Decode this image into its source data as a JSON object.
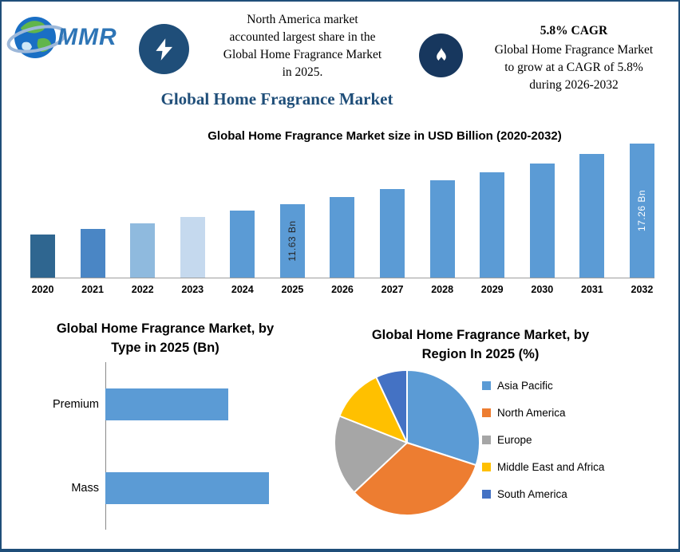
{
  "page": {
    "background": "#FFFFFF",
    "border_color": "#1F4E79"
  },
  "logo": {
    "text": "MMR"
  },
  "header": {
    "highlight_share": {
      "lines": [
        "North America market",
        "accounted largest share in the",
        "Global Home Fragrance Market",
        "in 2025."
      ]
    },
    "highlight_cagr": {
      "title": "5.8% CAGR",
      "lines": [
        "Global Home Fragrance Market",
        "to grow at a CAGR of 5.8%",
        "during 2026-2032"
      ]
    }
  },
  "main_title": "Global Home Fragrance Market",
  "colors": {
    "navy": "#1F4E79",
    "bar_blue": "#5B9BD5",
    "orange": "#ED7D31",
    "gray": "#A6A6A6",
    "yellow": "#FFC000",
    "dark_blue": "#4472C4"
  },
  "chart_data": [
    {
      "type": "bar",
      "title": "Global Home Fragrance Market size in USD Billion (2020-2032)",
      "categories": [
        "2020",
        "2021",
        "2022",
        "2023",
        "2024",
        "2025",
        "2026",
        "2027",
        "2028",
        "2029",
        "2030",
        "2031",
        "2032"
      ],
      "values": [
        8.8,
        9.3,
        9.8,
        10.4,
        11.0,
        11.63,
        12.3,
        13.0,
        13.8,
        14.6,
        15.4,
        16.3,
        17.26
      ],
      "unit": "USD Billion",
      "value_note": "only 2025 (11.63 Bn) and 2032 (17.26 Bn) are labeled; other values estimated from bar heights",
      "data_labels": [
        {
          "index": 5,
          "text": "11.63 Bn",
          "color": "#262626"
        },
        {
          "index": 12,
          "text": "17.26 Bn",
          "color": "#FFFFFF"
        }
      ],
      "bar_colors": [
        "#2F6690",
        "#4A86C5",
        "#8FBADE",
        "#C5D9EE",
        "#5B9BD5",
        "#5B9BD5",
        "#5B9BD5",
        "#5B9BD5",
        "#5B9BD5",
        "#5B9BD5",
        "#5B9BD5",
        "#5B9BD5",
        "#5B9BD5"
      ],
      "ylim": [
        0,
        18
      ],
      "grid": false,
      "legend_position": "none"
    },
    {
      "type": "bar",
      "orientation": "horizontal",
      "title": "Global Home Fragrance Market, by Type in 2025 (Bn)",
      "title_lines": [
        "Global Home Fragrance Market, by",
        "Type in 2025 (Bn)"
      ],
      "categories": [
        "Premium",
        "Mass"
      ],
      "values": [
        5.2,
        6.9
      ],
      "value_note": "bars are unlabeled; values estimated from relative bar lengths",
      "color": "#5B9BD5",
      "grid": false,
      "legend_position": "none"
    },
    {
      "type": "pie",
      "title": "Global Home Fragrance Market, by Region In 2025 (%)",
      "title_lines": [
        "Global Home Fragrance Market, by",
        "Region In 2025 (%)"
      ],
      "labels": [
        "Asia Pacific",
        "North America",
        "Europe",
        "Middle East and Africa",
        "South America"
      ],
      "values": [
        30,
        33,
        18,
        12,
        7
      ],
      "value_note": "slices are unlabeled; percentages estimated from slice angles",
      "colors": [
        "#5B9BD5",
        "#ED7D31",
        "#A6A6A6",
        "#FFC000",
        "#4472C4"
      ],
      "legend_position": "right"
    }
  ]
}
